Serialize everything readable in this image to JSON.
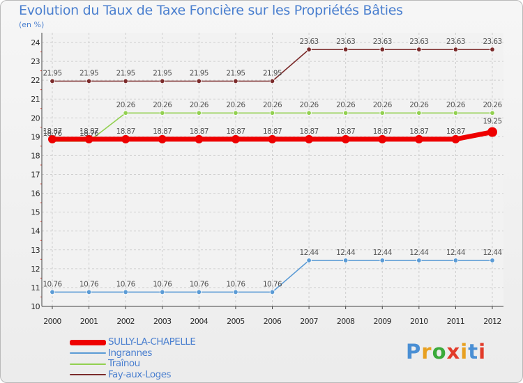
{
  "title": "Evolution du Taux de Taxe Foncière sur les Propriétés Bâties",
  "unit_label": "(en %)",
  "logo": {
    "text": "Proxiti",
    "colors": [
      "#4a8fd4",
      "#e8a020",
      "#3aaa3a",
      "#e23b2a",
      "#e8a020",
      "#4a8fd4",
      "#e23b2a"
    ]
  },
  "colors": {
    "SULLY-LA-CHAPELLE": "#ee0000",
    "Ingrannes": "#5b9bd5",
    "Traînou": "#92d050",
    "Fay-aux-Loges": "#7b2b2b"
  },
  "chart_data": {
    "type": "line",
    "title": "Evolution du Taux de Taxe Foncière sur les Propriétés Bâties",
    "ylabel": "(en %)",
    "xlabel": "",
    "ylim": [
      10,
      24
    ],
    "yticks": [
      "10",
      "11",
      "12",
      "13",
      "14",
      "15",
      "16",
      "17",
      "18",
      "19",
      "20",
      "21",
      "22",
      "23",
      "24"
    ],
    "categories": [
      "2000",
      "2001",
      "2002",
      "2003",
      "2004",
      "2005",
      "2006",
      "2007",
      "2008",
      "2009",
      "2010",
      "2011",
      "2012"
    ],
    "series": [
      {
        "name": "SULLY-LA-CHAPELLE",
        "values": [
          18.87,
          18.87,
          18.87,
          18.87,
          18.87,
          18.87,
          18.87,
          18.87,
          18.87,
          18.87,
          18.87,
          18.87,
          19.25
        ],
        "labels": [
          "18.87",
          "18.87",
          "18.87",
          "18.87",
          "18.87",
          "18.87",
          "18.87",
          "18.87",
          "18.87",
          "18.87",
          "18.87",
          "18.87",
          "19.25"
        ]
      },
      {
        "name": "Ingrannes",
        "values": [
          10.76,
          10.76,
          10.76,
          10.76,
          10.76,
          10.76,
          10.76,
          12.44,
          12.44,
          12.44,
          12.44,
          12.44,
          12.44
        ],
        "labels": [
          "10.76",
          "10.76",
          "10.76",
          "10.76",
          "10.76",
          "10.76",
          "10.76",
          "12.44",
          "12.44",
          "12.44",
          "12.44",
          "12.44",
          "12.44"
        ]
      },
      {
        "name": "Traînou",
        "values": [
          18.76,
          18.76,
          20.26,
          20.26,
          20.26,
          20.26,
          20.26,
          20.26,
          20.26,
          20.26,
          20.26,
          20.26,
          20.26
        ],
        "labels": [
          "18.76",
          "18.76",
          "20.26",
          "20.26",
          "20.26",
          "20.26",
          "20.26",
          "20.26",
          "20.26",
          "20.26",
          "20.26",
          "20.26",
          "20.26"
        ]
      },
      {
        "name": "Fay-aux-Loges",
        "values": [
          21.95,
          21.95,
          21.95,
          21.95,
          21.95,
          21.95,
          21.95,
          23.63,
          23.63,
          23.63,
          23.63,
          23.63,
          23.63
        ],
        "labels": [
          "21.95",
          "21.95",
          "21.95",
          "21.95",
          "21.95",
          "21.95",
          "21.95",
          "23.63",
          "23.63",
          "23.63",
          "23.63",
          "23.63",
          "23.63"
        ]
      }
    ]
  }
}
